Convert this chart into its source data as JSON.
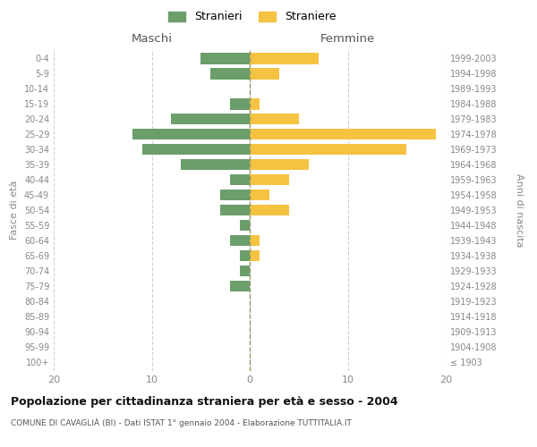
{
  "age_groups": [
    "100+",
    "95-99",
    "90-94",
    "85-89",
    "80-84",
    "75-79",
    "70-74",
    "65-69",
    "60-64",
    "55-59",
    "50-54",
    "45-49",
    "40-44",
    "35-39",
    "30-34",
    "25-29",
    "20-24",
    "15-19",
    "10-14",
    "5-9",
    "0-4"
  ],
  "birth_years": [
    "≤ 1903",
    "1904-1908",
    "1909-1913",
    "1914-1918",
    "1919-1923",
    "1924-1928",
    "1929-1933",
    "1934-1938",
    "1939-1943",
    "1944-1948",
    "1949-1953",
    "1954-1958",
    "1959-1963",
    "1964-1968",
    "1969-1973",
    "1974-1978",
    "1979-1983",
    "1984-1988",
    "1989-1993",
    "1994-1998",
    "1999-2003"
  ],
  "stranieri": [
    0,
    0,
    0,
    0,
    0,
    2,
    1,
    1,
    2,
    1,
    3,
    3,
    2,
    7,
    11,
    12,
    8,
    2,
    0,
    4,
    5
  ],
  "straniere": [
    0,
    0,
    0,
    0,
    0,
    0,
    0,
    1,
    1,
    0,
    4,
    2,
    4,
    6,
    16,
    19,
    5,
    1,
    0,
    3,
    7
  ],
  "xlim": [
    -20,
    20
  ],
  "xlabel_left": "Maschi",
  "xlabel_right": "Femmine",
  "ylabel_left": "Fasce di età",
  "ylabel_right": "Anni di nascita",
  "title": "Popolazione per cittadinanza straniera per età e sesso - 2004",
  "subtitle": "COMUNE DI CAVAGLIÀ (BI) - Dati ISTAT 1° gennaio 2004 - Elaborazione TUTTITALIA.IT",
  "legend_stranieri": "Stranieri",
  "legend_straniere": "Straniere",
  "color_stranieri": "#6b9e6b",
  "color_straniere": "#f5c242",
  "background_color": "#ffffff",
  "grid_color": "#d0d0d0",
  "tick_color": "#888888",
  "bar_height": 0.75,
  "xticks": [
    -20,
    -10,
    0,
    10,
    20
  ]
}
